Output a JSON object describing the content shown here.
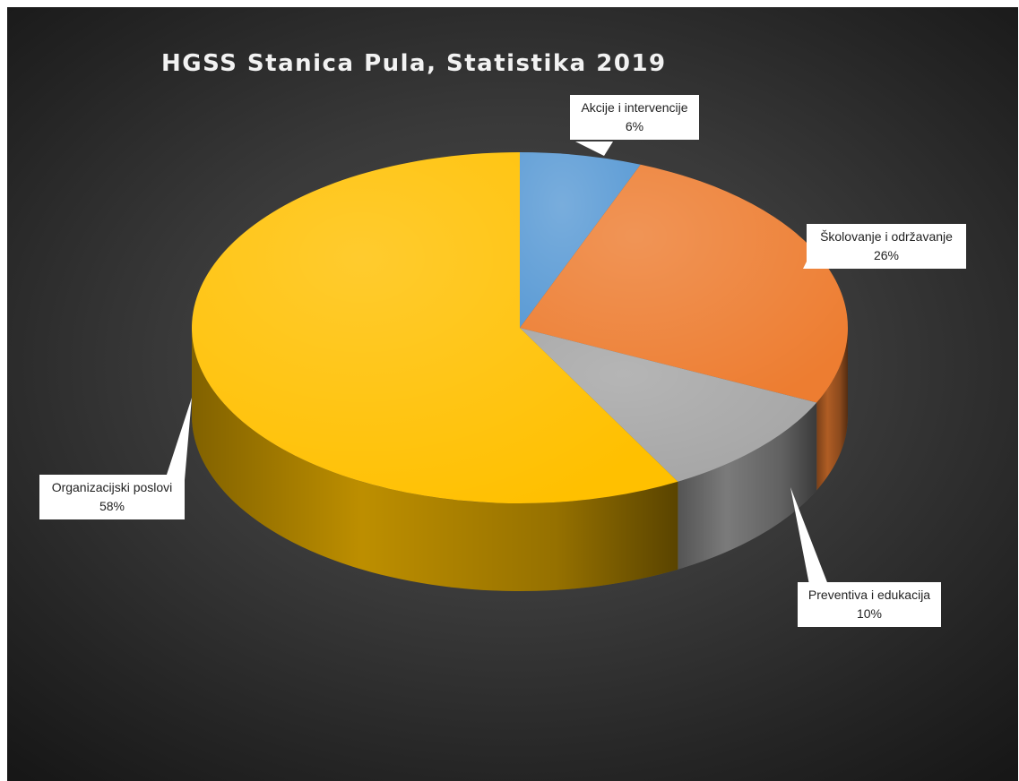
{
  "chart_data": {
    "type": "pie",
    "title": "HGSS Stanica Pula, Statistika 2019",
    "slices": [
      {
        "name": "Akcije i intervencije",
        "value": 6,
        "label": "6%",
        "color": "#5b9bd5"
      },
      {
        "name": "Školovanje i održavanje",
        "value": 26,
        "label": "26%",
        "color": "#ed7d31"
      },
      {
        "name": "Preventiva i edukacija",
        "value": 10,
        "label": "10%",
        "color": "#a5a5a5"
      },
      {
        "name": "Organizacijski poslovi",
        "value": 58,
        "label": "58%",
        "color": "#ffc000"
      }
    ],
    "style": "3d",
    "background": "#2e2e2e",
    "legend": "none"
  }
}
